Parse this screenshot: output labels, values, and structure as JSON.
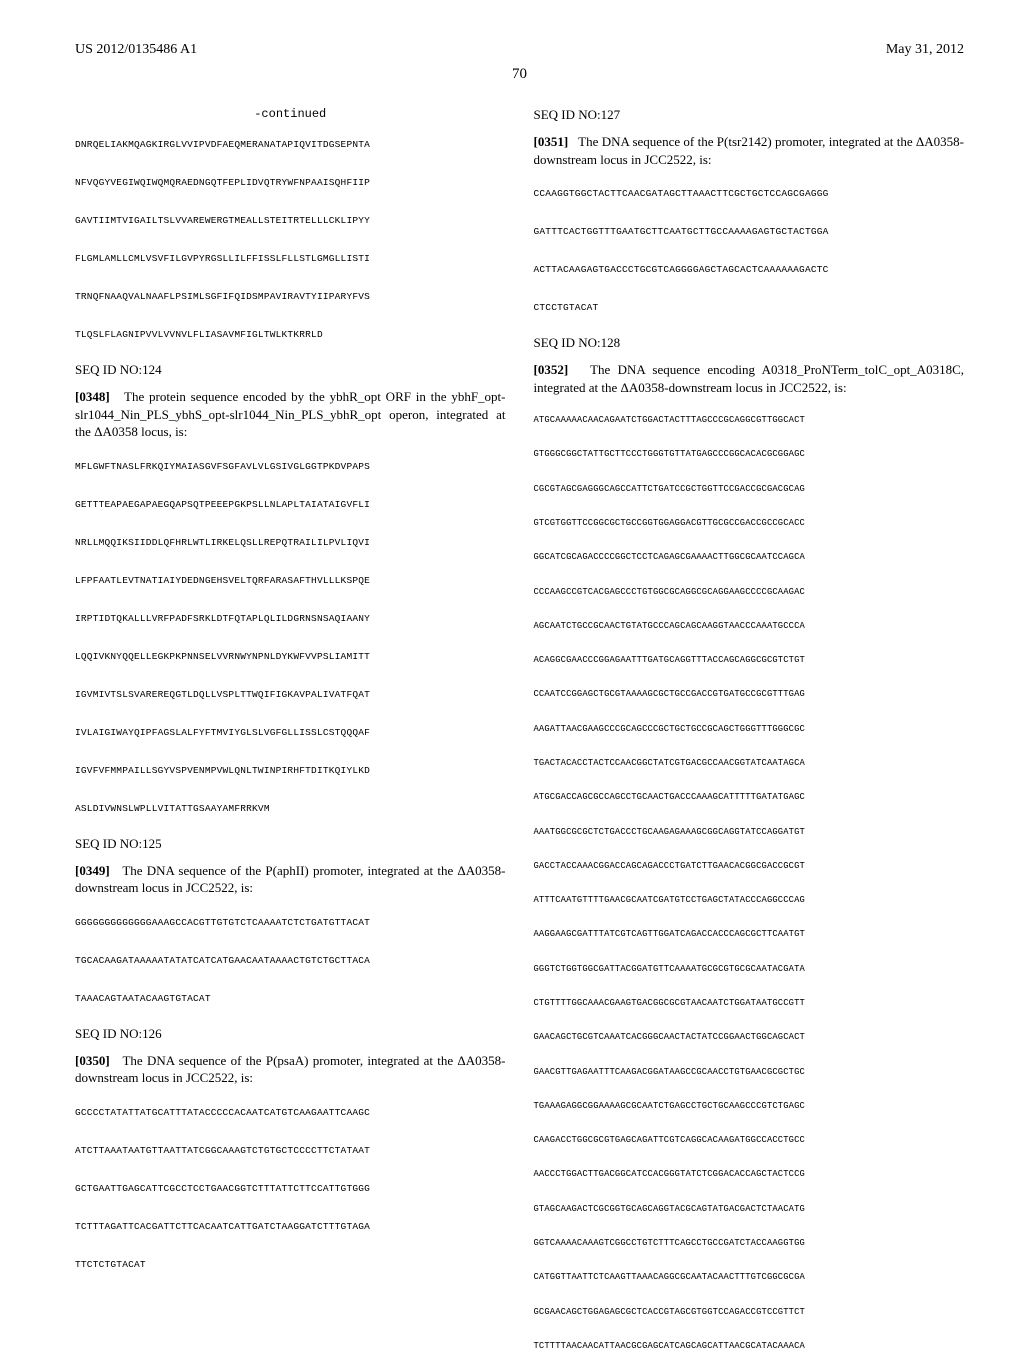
{
  "header": {
    "left": "US 2012/0135486 A1",
    "right": "May 31, 2012"
  },
  "page_number": "70",
  "left_column": {
    "continued_label": "-continued",
    "seq_continued": "DNRQELIAKMQAGKIRGLVVIPVDFAEQMERANATAPIQVITDGSEPNTA\n\nNFVQGYVEGIWQIWQMQRAEDNGQTFEPLIDVQTRYWFNPAAISQHFIIP\n\nGAVTIIMTVIGAILTSLVVAREWERGTMEALLSTEITRTELLLCKLIPYY\n\nFLGMLAMLLCMLVSVFILGVPYRGSLLILFFISSLFLLSTLGMGLLISTI\n\nTRNQFNAAQVALNAAFLPSIMLSGFIFQIDSMPAVIRAVTYIIPARYFVS\n\nTLQSLFLAGNIPVVLVVNVLFLIASAVMFIGLTWLKTKRRLD",
    "seq124": {
      "label": "SEQ ID NO:124",
      "para_num": "[0348]",
      "para_text": "The protein sequence encoded by the ybhR_opt ORF in the ybhF_opt-slr1044_Nin_PLS_ybhS_opt-slr1044_Nin_PLS_ybhR_opt operon, integrated at the ΔA0358 locus, is:",
      "sequence": "MFLGWFTNASLFRKQIYMAIASGVFSGFAVLVLGSIVGLGGTPKDVPAPS\n\nGETTTEAPAEGAPAEGQAPSQTPEEEPGKPSLLNLAPLTAIATAIGVFLI\n\nNRLLMQQIKSIIDDLQFHRLWTLIRKELQSLLREPQTRAILILPVLIQVI\n\nLFPFAATLEVTNATIAIYDEDNGEHSVELTQRFARASAFTHVLLLKSPQE\n\nIRPTIDTQKALLLVRFPADFSRKLDTFQTAPLQLILDGRNSNSAQIAANY\n\nLQQIVKNYQQELLEGKPKPNNSELVVRNWYNPNLDYKWFVVPSLIAMITT\n\nIGVMIVTSLSVAREREQGTLDQLLVSPLTTWQIFIGKAVPALIVATFQAT\n\nIVLAIGIWAYQIPFAGSLALFYFTMVIYGLSLVGFGLLISSLCSTQQQAF\n\nIGVFVFMMPAILLSGYVSPVENMPVWLQNLTWINPIRHFTDITKQIYLKD\n\nASLDIVWNSLWPLLVITATTGSAAYAMFRRKVM"
    },
    "seq125": {
      "label": "SEQ ID NO:125",
      "para_num": "[0349]",
      "para_text": "The DNA sequence of the P(aphII) promoter, integrated at the ΔA0358-downstream locus in JCC2522, is:",
      "sequence": "GGGGGGGGGGGGGAAAGCCACGTTGTGTCTCAAAATCTCTGATGTTACAT\n\nTGCACAAGATAAAAATATATCATCATGAACAATAAAACTGTCTGCTTACA\n\nTAAACAGTAATACAAGTGTACAT"
    },
    "seq126": {
      "label": "SEQ ID NO:126",
      "para_num": "[0350]",
      "para_text": "The DNA sequence of the P(psaA) promoter, integrated at the ΔA0358-downstream locus in JCC2522, is:",
      "sequence": "GCCCCTATATTATGCATTTATACCCCCACAATCATGTCAAGAATTCAAGC\n\nATCTTAAATAATGTTAATTATCGGCAAAGTCTGTGCTCCCCTTCTATAAT\n\nGCTGAATTGAGCATTCGCCTCCTGAACGGTCTTTATTCTTCCATTGTGGG\n\nTCTTTAGATTCACGATTCTTCACAATCATTGATCTAAGGATCTTTGTAGA\n\nTTCTCTGTACAT"
    }
  },
  "right_column": {
    "seq127": {
      "label": "SEQ ID NO:127",
      "para_num": "[0351]",
      "para_text": "The DNA sequence of the P(tsr2142) promoter, integrated at the ΔA0358-downstream locus in JCC2522, is:",
      "sequence": "CCAAGGTGGCTACTTCAACGATAGCTTAAACTTCGCTGCTCCAGCGAGGG\n\nGATTTCACTGGTTTGAATGCTTCAATGCTTGCCAAAAGAGTGCTACTGGA\n\nACTTACAAGAGTGACCCTGCGTCAGGGGAGCTAGCACTCAAAAAAGACTC\n\nCTCCTGTACAT"
    },
    "seq128": {
      "label": "SEQ ID NO:128",
      "para_num": "[0352]",
      "para_text": "The DNA sequence encoding A0318_ProNTerm_tolC_opt_A0318C, integrated at the ΔA0358-downstream locus in JCC2522, is:",
      "sequence": "ATGCAAAAACAACAGAATCTGGACTACTTTAGCCCGCAGGCGTTGGCACT\n\nGTGGGCGGCTATTGCTTCCCTGGGTGTTATGAGCCCGGCACACGCGGAGC\n\nCGCGTAGCGAGGGCAGCCATTCTGATCCGCTGGTTCCGACCGCGACGCAG\n\nGTCGTGGTTCCGGCGCTGCCGGTGGAGGACGTTGCGCCGACCGCCGCACC\n\nGGCATCGCAGACCCCGGCTCCTCAGAGCGAAAACTTGGCGCAATCCAGCA\n\nCCCAAGCCGTCACGAGCCCTGTGGCGCAGGCGCAGGAAGCCCCGCAAGAC\n\nAGCAATCTGCCGCAACTGTATGCCCAGCAGCAAGGTAACCCAAATGCCCA\n\nACAGGCGAACCCGGAGAATTTGATGCAGGTTTACCAGCAGGCGCGTCTGT\n\nCCAATCCGGAGCTGCGTAAAAGCGCTGCCGACCGTGATGCCGCGTTTGAG\n\nAAGATTAACGAAGCCCGCAGCCCGCTGCTGCCGCAGCTGGGTTTGGGCGC\n\nTGACTACACCTACTCCAACGGCTATCGTGACGCCAACGGTATCAATAGCA\n\nATGCGACCAGCGCCAGCCTGCAACTGACCCAAAGCATTTTTGATATGAGC\n\nAAATGGCGCGCTCTGACCCTGCAAGAGAAAGCGGCAGGTATCCAGGATGT\n\nGACCTACCAAACGGACCAGCAGACCCTGATCTTGAACACGGCGACCGCGT\n\nATTTCAATGTTTTGAACGCAATCGATGTCCTGAGCTATACCCAGGCCCAG\n\nAAGGAAGCGATTTATCGTCAGTTGGATCAGACCACCCAGCGCTTCAATGT\n\nGGGTCTGGTGGCGATTACGGATGTTCAAAATGCGCGTGCGCAATACGATA\n\nCTGTTTTGGCAAACGAAGTGACGGCGCGTAACAATCTGGATAATGCCGTT\n\nGAACAGCTGCGTCAAATCACGGGCAACTACTATCCGGAACTGGCAGCACT\n\nGAACGTTGAGAATTTCAAGACGGATAAGCCGCAACCTGTGAACGCGCTGC\n\nTGAAAGAGGCGGAAAAGCGCAATCTGAGCCTGCTGCAAGCCCGTCTGAGC\n\nCAAGACCTGGCGCGTGAGCAGATTCGTCAGGCACAAGATGGCCACCTGCC\n\nAACCCTGGACTTGACGGCATCCACGGGTATCTCGGACACCAGCTACTCCG\n\nGTAGCAAGACTCGCGGTGCAGCAGGTACGCAGTATGACGACTCTAACATG\n\nGGTCAAAACAAAGTCGGCCTGTCTTTCAGCCTGCCGATCTACCAAGGTGG\n\nCATGGTTAATTCTCAAGTTAAACAGGCGCAATACAACTTTGTCGGCGCGA\n\nGCGAACAGCTGGAGAGCGCTCACCGTAGCGTGGTCCAGACCGTCCGTTCT\n\nTCTTTTAACAACATTAACGCGAGCATCAGCAGCATTAACGCATACAAACA"
    }
  }
}
